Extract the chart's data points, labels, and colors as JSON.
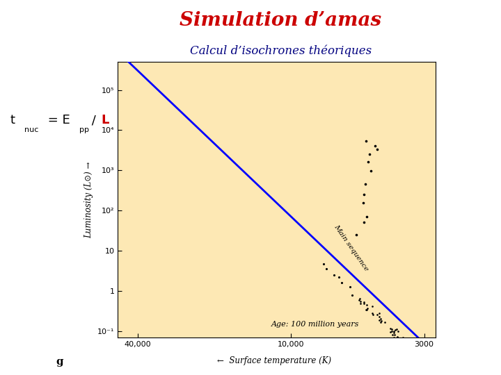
{
  "title": "Simulation d’amas",
  "subtitle": "Calcul d’isochrones théoriques",
  "title_color": "#cc0000",
  "subtitle_color": "#000080",
  "bg_color": "#ffffff",
  "plot_bg_color": "#fde8b4",
  "annotation_text": "Age: 100 million years",
  "label_main_seq": "Main sequence",
  "label_ylabel": "Luminosity (L⊙) →",
  "label_xlabel": "←  Surface temperature (K)",
  "label_g": "g",
  "equation_color_main": "#000000",
  "equation_color_L": "#cc0000",
  "blue_line_slope": 6.03,
  "blue_line_T1": 40000,
  "blue_line_L1": 300000,
  "blue_line_T2": 3000,
  "blue_line_L2": 0.05,
  "xtick_positions": [
    40000,
    10000,
    3000
  ],
  "xtick_labels": [
    "40,000",
    "10,000",
    "3000"
  ],
  "ytick_positions": [
    0.1,
    1,
    10,
    100,
    1000,
    10000,
    100000
  ],
  "ytick_labels": [
    "10⁻¹",
    "1",
    "10",
    "10²",
    "10³",
    "10⁴",
    "10⁵"
  ]
}
